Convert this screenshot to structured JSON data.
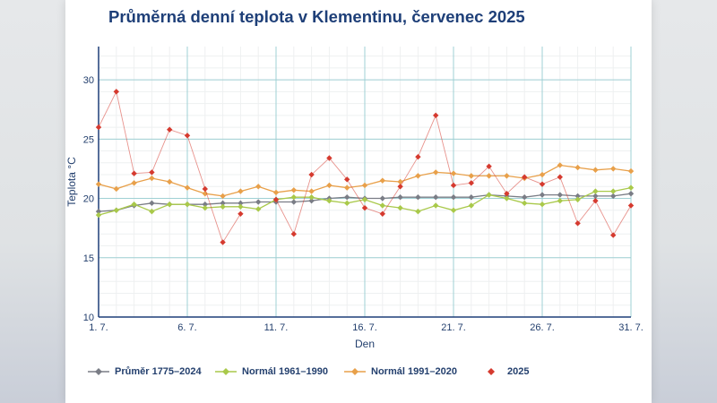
{
  "chart_data": {
    "type": "line",
    "title": "Průměrná denní teplota v Klementinu, červenec 2025",
    "xlabel": "Den",
    "ylabel": "Teplota °C",
    "x": [
      1,
      2,
      3,
      4,
      5,
      6,
      7,
      8,
      9,
      10,
      11,
      12,
      13,
      14,
      15,
      16,
      17,
      18,
      19,
      20,
      21,
      22,
      23,
      24,
      25,
      26,
      27,
      28,
      29,
      30,
      31
    ],
    "x_ticks": [
      {
        "x": 1,
        "label": "1. 7."
      },
      {
        "x": 6,
        "label": "6. 7."
      },
      {
        "x": 11,
        "label": "11. 7."
      },
      {
        "x": 16,
        "label": "16. 7."
      },
      {
        "x": 21,
        "label": "21. 7."
      },
      {
        "x": 26,
        "label": "26. 7."
      },
      {
        "x": 31,
        "label": "31. 7."
      }
    ],
    "y_ticks": [
      10,
      15,
      20,
      25,
      30
    ],
    "xlim": [
      1,
      31
    ],
    "ylim": [
      10,
      32.8
    ],
    "grid": true,
    "legend_position": "bottom",
    "series": [
      {
        "name": "Průměr 1775–2024",
        "color": "#7a7d86",
        "marker": "diamond",
        "values": [
          18.9,
          19.0,
          19.4,
          19.6,
          19.5,
          19.5,
          19.5,
          19.6,
          19.6,
          19.7,
          19.7,
          19.7,
          19.8,
          20.0,
          20.1,
          20.0,
          20.0,
          20.1,
          20.1,
          20.1,
          20.1,
          20.1,
          20.3,
          20.2,
          20.1,
          20.3,
          20.3,
          20.2,
          20.2,
          20.2,
          20.4
        ]
      },
      {
        "name": "Normál 1961–1990",
        "color": "#a9c94a",
        "marker": "diamond",
        "values": [
          18.6,
          19.0,
          19.5,
          18.9,
          19.5,
          19.5,
          19.2,
          19.3,
          19.3,
          19.1,
          19.9,
          20.1,
          20.1,
          19.8,
          19.6,
          19.9,
          19.4,
          19.2,
          18.9,
          19.4,
          19.0,
          19.4,
          20.3,
          20.0,
          19.6,
          19.5,
          19.8,
          19.9,
          20.6,
          20.6,
          20.9
        ]
      },
      {
        "name": "Normál 1991–2020",
        "color": "#e8a04a",
        "marker": "diamond",
        "values": [
          21.2,
          20.8,
          21.3,
          21.7,
          21.4,
          20.9,
          20.4,
          20.2,
          20.6,
          21.0,
          20.5,
          20.7,
          20.6,
          21.1,
          20.9,
          21.1,
          21.5,
          21.4,
          21.9,
          22.2,
          22.1,
          21.9,
          21.9,
          21.9,
          21.7,
          22.0,
          22.8,
          22.6,
          22.4,
          22.5,
          22.3
        ]
      },
      {
        "name": "2025",
        "color": "#d53a2f",
        "marker": "diamond",
        "values": [
          26.0,
          29.0,
          22.1,
          22.2,
          25.8,
          25.3,
          20.8,
          16.3,
          18.7,
          null,
          19.9,
          17.0,
          22.0,
          23.4,
          21.6,
          19.2,
          18.7,
          21.0,
          23.5,
          27.0,
          21.1,
          21.3,
          22.7,
          20.4,
          21.8,
          21.2,
          21.8,
          17.9,
          19.8,
          16.9,
          19.4
        ]
      }
    ]
  }
}
